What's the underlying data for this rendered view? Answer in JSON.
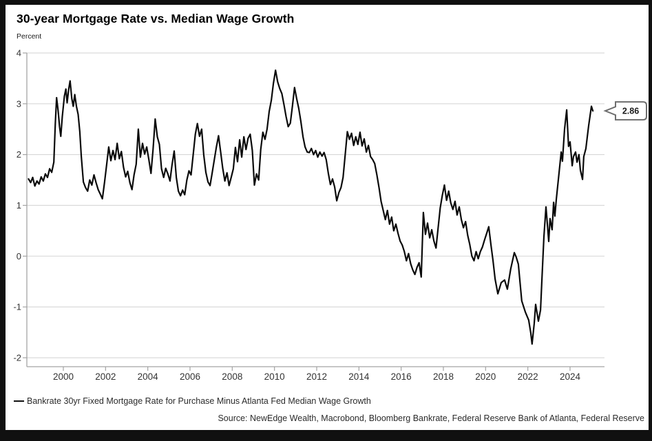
{
  "title": "30-year Mortgage Rate vs. Median Wage Growth",
  "unit_label": "Percent",
  "legend": {
    "swatch": "line-dash",
    "label": "Bankrate 30yr Fixed Mortgage Rate for Purchase Minus Atlanta Fed Median Wage Growth"
  },
  "source_note": "Source: NewEdge Wealth, Macrobond, Bloomberg Bankrate, Federal Reserve Bank of Atlanta, Federal Reserve",
  "colors": {
    "frame": "#101010",
    "card_bg": "#ffffff",
    "grid": "#d9d9d9",
    "axis": "#a3a3a3",
    "tick_label": "#333333",
    "series_line": "#0a0a0a",
    "callout_border": "#6e6e6e",
    "callout_text": "#1a1a1a"
  },
  "chart_data": {
    "type": "line",
    "title": "30-year Mortgage Rate vs. Median Wage Growth",
    "xlabel": "",
    "ylabel": "Percent",
    "ylim": [
      -2,
      4
    ],
    "yticks": [
      4,
      3,
      2,
      1,
      0,
      -1,
      -2
    ],
    "xticks": [
      2000,
      2002,
      2004,
      2006,
      2008,
      2010,
      2012,
      2014,
      2016,
      2018,
      2020,
      2022,
      2024
    ],
    "x_range_years": [
      1998.3,
      2025.6
    ],
    "grid": "horizontal",
    "legend_position": "bottom-left",
    "end_label": "2.86",
    "series": [
      {
        "name": "Bankrate 30yr Fixed Mortgage Rate for Purchase Minus Atlanta Fed Median Wage Growth",
        "color": "#0a0a0a",
        "points": [
          [
            1998.35,
            1.52
          ],
          [
            1998.45,
            1.45
          ],
          [
            1998.55,
            1.55
          ],
          [
            1998.65,
            1.38
          ],
          [
            1998.75,
            1.48
          ],
          [
            1998.85,
            1.42
          ],
          [
            1998.95,
            1.56
          ],
          [
            1999.05,
            1.48
          ],
          [
            1999.15,
            1.62
          ],
          [
            1999.25,
            1.55
          ],
          [
            1999.35,
            1.72
          ],
          [
            1999.45,
            1.65
          ],
          [
            1999.55,
            1.85
          ],
          [
            1999.62,
            2.6
          ],
          [
            1999.68,
            3.12
          ],
          [
            1999.75,
            2.88
          ],
          [
            1999.82,
            2.55
          ],
          [
            1999.88,
            2.36
          ],
          [
            1999.95,
            2.75
          ],
          [
            2000.05,
            3.15
          ],
          [
            2000.12,
            3.29
          ],
          [
            2000.18,
            3.02
          ],
          [
            2000.25,
            3.28
          ],
          [
            2000.32,
            3.45
          ],
          [
            2000.4,
            3.1
          ],
          [
            2000.47,
            2.95
          ],
          [
            2000.54,
            3.18
          ],
          [
            2000.62,
            2.95
          ],
          [
            2000.7,
            2.79
          ],
          [
            2000.78,
            2.45
          ],
          [
            2000.85,
            1.96
          ],
          [
            2000.95,
            1.46
          ],
          [
            2001.05,
            1.35
          ],
          [
            2001.15,
            1.28
          ],
          [
            2001.25,
            1.5
          ],
          [
            2001.35,
            1.4
          ],
          [
            2001.45,
            1.6
          ],
          [
            2001.55,
            1.45
          ],
          [
            2001.65,
            1.31
          ],
          [
            2001.75,
            1.22
          ],
          [
            2001.85,
            1.13
          ],
          [
            2001.95,
            1.45
          ],
          [
            2002.05,
            1.8
          ],
          [
            2002.15,
            2.15
          ],
          [
            2002.25,
            1.88
          ],
          [
            2002.35,
            2.08
          ],
          [
            2002.45,
            1.9
          ],
          [
            2002.55,
            2.22
          ],
          [
            2002.65,
            1.92
          ],
          [
            2002.75,
            2.06
          ],
          [
            2002.85,
            1.75
          ],
          [
            2002.95,
            1.56
          ],
          [
            2003.05,
            1.67
          ],
          [
            2003.15,
            1.45
          ],
          [
            2003.25,
            1.31
          ],
          [
            2003.35,
            1.6
          ],
          [
            2003.45,
            1.81
          ],
          [
            2003.55,
            2.5
          ],
          [
            2003.65,
            1.95
          ],
          [
            2003.75,
            2.22
          ],
          [
            2003.85,
            2.01
          ],
          [
            2003.95,
            2.15
          ],
          [
            2004.05,
            1.9
          ],
          [
            2004.15,
            1.63
          ],
          [
            2004.25,
            2.1
          ],
          [
            2004.35,
            2.7
          ],
          [
            2004.45,
            2.35
          ],
          [
            2004.55,
            2.2
          ],
          [
            2004.65,
            1.72
          ],
          [
            2004.75,
            1.55
          ],
          [
            2004.85,
            1.73
          ],
          [
            2004.95,
            1.62
          ],
          [
            2005.05,
            1.48
          ],
          [
            2005.15,
            1.8
          ],
          [
            2005.25,
            2.07
          ],
          [
            2005.35,
            1.55
          ],
          [
            2005.45,
            1.28
          ],
          [
            2005.55,
            1.19
          ],
          [
            2005.65,
            1.3
          ],
          [
            2005.75,
            1.21
          ],
          [
            2005.85,
            1.5
          ],
          [
            2005.95,
            1.68
          ],
          [
            2006.05,
            1.6
          ],
          [
            2006.15,
            2.0
          ],
          [
            2006.25,
            2.4
          ],
          [
            2006.35,
            2.61
          ],
          [
            2006.45,
            2.36
          ],
          [
            2006.55,
            2.5
          ],
          [
            2006.65,
            2.0
          ],
          [
            2006.75,
            1.65
          ],
          [
            2006.85,
            1.46
          ],
          [
            2006.95,
            1.39
          ],
          [
            2007.05,
            1.64
          ],
          [
            2007.15,
            1.9
          ],
          [
            2007.25,
            2.15
          ],
          [
            2007.35,
            2.37
          ],
          [
            2007.45,
            2.05
          ],
          [
            2007.55,
            1.73
          ],
          [
            2007.65,
            1.48
          ],
          [
            2007.75,
            1.64
          ],
          [
            2007.85,
            1.39
          ],
          [
            2007.95,
            1.55
          ],
          [
            2008.05,
            1.72
          ],
          [
            2008.15,
            2.14
          ],
          [
            2008.25,
            1.86
          ],
          [
            2008.35,
            2.29
          ],
          [
            2008.45,
            1.95
          ],
          [
            2008.55,
            2.35
          ],
          [
            2008.65,
            2.1
          ],
          [
            2008.75,
            2.32
          ],
          [
            2008.85,
            2.4
          ],
          [
            2008.95,
            2.08
          ],
          [
            2009.05,
            1.4
          ],
          [
            2009.15,
            1.62
          ],
          [
            2009.25,
            1.5
          ],
          [
            2009.35,
            2.1
          ],
          [
            2009.45,
            2.44
          ],
          [
            2009.55,
            2.3
          ],
          [
            2009.65,
            2.5
          ],
          [
            2009.75,
            2.85
          ],
          [
            2009.85,
            3.07
          ],
          [
            2009.95,
            3.4
          ],
          [
            2010.05,
            3.66
          ],
          [
            2010.15,
            3.43
          ],
          [
            2010.25,
            3.3
          ],
          [
            2010.35,
            3.2
          ],
          [
            2010.45,
            2.98
          ],
          [
            2010.55,
            2.75
          ],
          [
            2010.65,
            2.55
          ],
          [
            2010.75,
            2.62
          ],
          [
            2010.85,
            2.95
          ],
          [
            2010.95,
            3.32
          ],
          [
            2011.05,
            3.1
          ],
          [
            2011.15,
            2.91
          ],
          [
            2011.25,
            2.65
          ],
          [
            2011.35,
            2.35
          ],
          [
            2011.45,
            2.15
          ],
          [
            2011.55,
            2.05
          ],
          [
            2011.65,
            2.04
          ],
          [
            2011.75,
            2.12
          ],
          [
            2011.85,
            2.0
          ],
          [
            2011.95,
            2.08
          ],
          [
            2012.05,
            1.95
          ],
          [
            2012.15,
            2.05
          ],
          [
            2012.25,
            1.97
          ],
          [
            2012.35,
            2.04
          ],
          [
            2012.45,
            1.9
          ],
          [
            2012.55,
            1.63
          ],
          [
            2012.65,
            1.41
          ],
          [
            2012.75,
            1.52
          ],
          [
            2012.85,
            1.36
          ],
          [
            2012.95,
            1.09
          ],
          [
            2013.05,
            1.25
          ],
          [
            2013.15,
            1.35
          ],
          [
            2013.25,
            1.55
          ],
          [
            2013.35,
            2.0
          ],
          [
            2013.45,
            2.45
          ],
          [
            2013.55,
            2.3
          ],
          [
            2013.65,
            2.42
          ],
          [
            2013.75,
            2.18
          ],
          [
            2013.85,
            2.35
          ],
          [
            2013.95,
            2.2
          ],
          [
            2014.05,
            2.44
          ],
          [
            2014.15,
            2.17
          ],
          [
            2014.25,
            2.31
          ],
          [
            2014.35,
            2.05
          ],
          [
            2014.45,
            2.18
          ],
          [
            2014.55,
            1.96
          ],
          [
            2014.65,
            1.9
          ],
          [
            2014.75,
            1.82
          ],
          [
            2014.85,
            1.6
          ],
          [
            2014.95,
            1.35
          ],
          [
            2015.05,
            1.08
          ],
          [
            2015.15,
            0.9
          ],
          [
            2015.25,
            0.72
          ],
          [
            2015.35,
            0.9
          ],
          [
            2015.45,
            0.63
          ],
          [
            2015.55,
            0.77
          ],
          [
            2015.65,
            0.5
          ],
          [
            2015.75,
            0.63
          ],
          [
            2015.85,
            0.45
          ],
          [
            2015.95,
            0.3
          ],
          [
            2016.05,
            0.22
          ],
          [
            2016.15,
            0.09
          ],
          [
            2016.25,
            -0.09
          ],
          [
            2016.35,
            0.05
          ],
          [
            2016.45,
            -0.15
          ],
          [
            2016.55,
            -0.27
          ],
          [
            2016.65,
            -0.36
          ],
          [
            2016.75,
            -0.22
          ],
          [
            2016.85,
            -0.13
          ],
          [
            2016.95,
            -0.41
          ],
          [
            2017.05,
            0.86
          ],
          [
            2017.15,
            0.43
          ],
          [
            2017.25,
            0.65
          ],
          [
            2017.35,
            0.36
          ],
          [
            2017.45,
            0.52
          ],
          [
            2017.55,
            0.3
          ],
          [
            2017.65,
            0.16
          ],
          [
            2017.75,
            0.55
          ],
          [
            2017.85,
            0.95
          ],
          [
            2017.95,
            1.2
          ],
          [
            2018.05,
            1.4
          ],
          [
            2018.15,
            1.1
          ],
          [
            2018.25,
            1.28
          ],
          [
            2018.35,
            1.05
          ],
          [
            2018.45,
            0.92
          ],
          [
            2018.55,
            1.08
          ],
          [
            2018.65,
            0.81
          ],
          [
            2018.75,
            0.97
          ],
          [
            2018.85,
            0.72
          ],
          [
            2018.95,
            0.56
          ],
          [
            2019.05,
            0.68
          ],
          [
            2019.15,
            0.41
          ],
          [
            2019.25,
            0.23
          ],
          [
            2019.35,
            0.0
          ],
          [
            2019.45,
            -0.09
          ],
          [
            2019.55,
            0.09
          ],
          [
            2019.65,
            -0.05
          ],
          [
            2019.75,
            0.09
          ],
          [
            2019.85,
            0.18
          ],
          [
            2019.95,
            0.32
          ],
          [
            2020.05,
            0.45
          ],
          [
            2020.15,
            0.58
          ],
          [
            2020.25,
            0.23
          ],
          [
            2020.35,
            -0.09
          ],
          [
            2020.45,
            -0.45
          ],
          [
            2020.58,
            -0.74
          ],
          [
            2020.74,
            -0.52
          ],
          [
            2020.9,
            -0.47
          ],
          [
            2021.03,
            -0.65
          ],
          [
            2021.19,
            -0.25
          ],
          [
            2021.36,
            0.07
          ],
          [
            2021.45,
            -0.02
          ],
          [
            2021.55,
            -0.16
          ],
          [
            2021.71,
            -0.88
          ],
          [
            2021.88,
            -1.1
          ],
          [
            2022.04,
            -1.26
          ],
          [
            2022.14,
            -1.51
          ],
          [
            2022.2,
            -1.73
          ],
          [
            2022.3,
            -1.33
          ],
          [
            2022.37,
            -0.95
          ],
          [
            2022.5,
            -1.28
          ],
          [
            2022.6,
            -1.06
          ],
          [
            2022.66,
            -0.52
          ],
          [
            2022.76,
            0.38
          ],
          [
            2022.86,
            0.97
          ],
          [
            2022.92,
            0.65
          ],
          [
            2022.99,
            0.29
          ],
          [
            2023.05,
            0.74
          ],
          [
            2023.15,
            0.52
          ],
          [
            2023.22,
            1.06
          ],
          [
            2023.28,
            0.79
          ],
          [
            2023.35,
            1.13
          ],
          [
            2023.48,
            1.64
          ],
          [
            2023.58,
            2.05
          ],
          [
            2023.64,
            1.87
          ],
          [
            2023.74,
            2.5
          ],
          [
            2023.84,
            2.88
          ],
          [
            2023.93,
            2.16
          ],
          [
            2024.0,
            2.25
          ],
          [
            2024.1,
            1.78
          ],
          [
            2024.16,
            1.96
          ],
          [
            2024.26,
            2.05
          ],
          [
            2024.33,
            1.85
          ],
          [
            2024.42,
            2.0
          ],
          [
            2024.49,
            1.69
          ],
          [
            2024.59,
            1.51
          ],
          [
            2024.65,
            1.96
          ],
          [
            2024.75,
            2.12
          ],
          [
            2024.82,
            2.36
          ],
          [
            2024.88,
            2.57
          ],
          [
            2024.95,
            2.77
          ],
          [
            2025.01,
            2.95
          ],
          [
            2025.08,
            2.86
          ]
        ]
      }
    ]
  }
}
